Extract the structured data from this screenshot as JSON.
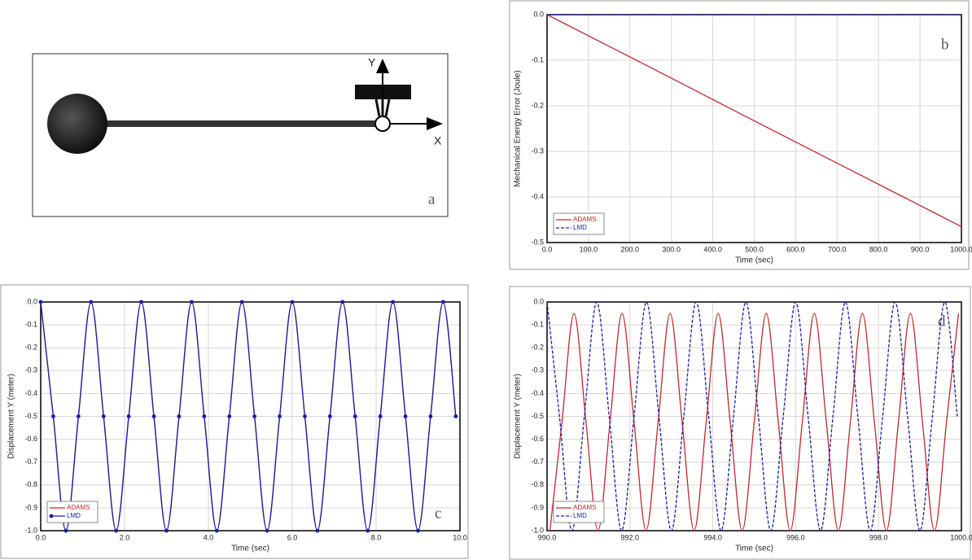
{
  "diagram": {
    "axis_y": "Y",
    "axis_x": "X",
    "panel_label": "a"
  },
  "chart_data": [
    {
      "type": "line",
      "panel_label": "b",
      "xlabel": "Time (sec)",
      "ylabel": "Mechanical Energy Error (Joule)",
      "x": [
        0,
        250,
        500,
        750,
        1000
      ],
      "series": [
        {
          "name": "ADAMS",
          "color": "#c0282d",
          "line_style": "solid",
          "values": [
            0,
            -0.116,
            -0.233,
            -0.349,
            -0.465
          ]
        },
        {
          "name": "LMD",
          "color": "#1c1ca8",
          "line_style": "dashed",
          "values": [
            0,
            0,
            0,
            0,
            0
          ]
        }
      ],
      "xlim": [
        0,
        1000
      ],
      "xticks": [
        {
          "value": 0,
          "label": "0.0"
        },
        {
          "value": 100,
          "label": "100.0"
        },
        {
          "value": 200,
          "label": "200.0"
        },
        {
          "value": 300,
          "label": "300.0"
        },
        {
          "value": 400,
          "label": "400.0"
        },
        {
          "value": 500,
          "label": "500.0"
        },
        {
          "value": 600,
          "label": "600.0"
        },
        {
          "value": 700,
          "label": "700.0"
        },
        {
          "value": 800,
          "label": "800.0"
        },
        {
          "value": 900,
          "label": "900.0"
        },
        {
          "value": 1000,
          "label": "1000.0"
        }
      ],
      "ylim": [
        -0.5,
        0
      ],
      "yticks": [
        {
          "value": 0,
          "label": "0.0"
        },
        {
          "value": -0.1,
          "label": "-0.1"
        },
        {
          "value": -0.2,
          "label": "-0.2"
        },
        {
          "value": -0.3,
          "label": "-0.3"
        },
        {
          "value": -0.4,
          "label": "-0.4"
        },
        {
          "value": -0.5,
          "label": "-0.5"
        }
      ],
      "grid": true,
      "legend": "lower-left"
    },
    {
      "type": "line",
      "panel_label": "c",
      "xlabel": "Time (sec)",
      "ylabel": "Displacement Y (meter)",
      "x": [
        0,
        0.3,
        0.6,
        0.9,
        1.2,
        1.5,
        1.8,
        2.1,
        2.4,
        2.7,
        3,
        3.3,
        3.6,
        3.9,
        4.2,
        4.5,
        4.8,
        5.1,
        5.4,
        5.7,
        6,
        6.3,
        6.6,
        6.9,
        7.2,
        7.5,
        7.8,
        8.1,
        8.4,
        8.7,
        9,
        9.3,
        9.6,
        9.9
      ],
      "series": [
        {
          "name": "ADAMS",
          "color": "#c0282d",
          "line_style": "solid",
          "values": [
            0,
            -0.5,
            -1,
            -0.5,
            0,
            -0.5,
            -1,
            -0.5,
            0,
            -0.5,
            -1,
            -0.5,
            0,
            -0.5,
            -1,
            -0.5,
            0,
            -0.5,
            -1,
            -0.5,
            0,
            -0.5,
            -1,
            -0.5,
            0,
            -0.5,
            -1,
            -0.5,
            0,
            -0.5,
            -1,
            -0.5,
            0,
            -0.5
          ]
        },
        {
          "name": "LMD",
          "color": "#1c1ca8",
          "line_style": "solid",
          "marker": "circle",
          "values": [
            0,
            -0.5,
            -1,
            -0.5,
            0,
            -0.5,
            -1,
            -0.5,
            0,
            -0.5,
            -1,
            -0.5,
            0,
            -0.5,
            -1,
            -0.5,
            0,
            -0.5,
            -1,
            -0.5,
            0,
            -0.5,
            -1,
            -0.5,
            0,
            -0.5,
            -1,
            -0.5,
            0,
            -0.5,
            -1,
            -0.5,
            0,
            -0.5
          ]
        }
      ],
      "xlim": [
        0,
        10
      ],
      "xticks": [
        {
          "value": 0,
          "label": "0.0"
        },
        {
          "value": 2,
          "label": "2.0"
        },
        {
          "value": 4,
          "label": "4.0"
        },
        {
          "value": 6,
          "label": "6.0"
        },
        {
          "value": 8,
          "label": "8.0"
        },
        {
          "value": 10,
          "label": "10.0"
        }
      ],
      "ylim": [
        -1,
        0
      ],
      "yticks": [
        {
          "value": 0,
          "label": "0.0"
        },
        {
          "value": -0.1,
          "label": "-0.1"
        },
        {
          "value": -0.2,
          "label": "-0.2"
        },
        {
          "value": -0.3,
          "label": "-0.3"
        },
        {
          "value": -0.4,
          "label": "-0.4"
        },
        {
          "value": -0.5,
          "label": "-0.5"
        },
        {
          "value": -0.6,
          "label": "-0.6"
        },
        {
          "value": -0.7,
          "label": "-0.7"
        },
        {
          "value": -0.8,
          "label": "-0.8"
        },
        {
          "value": -0.9,
          "label": "-0.9"
        },
        {
          "value": -1,
          "label": "-1.0"
        }
      ],
      "grid": true,
      "legend": "lower-left"
    },
    {
      "type": "line",
      "panel_label": "d",
      "xlabel": "Time (sec)",
      "ylabel": "Displacement Y (meter)",
      "series": [
        {
          "name": "ADAMS",
          "color": "#c0282d",
          "line_style": "solid",
          "x": [
            990.07,
            990.36,
            990.65,
            990.94,
            991.23,
            991.52,
            991.81,
            992.1,
            992.39,
            992.68,
            992.97,
            993.26,
            993.55,
            993.84,
            994.13,
            994.42,
            994.71,
            995,
            995.29,
            995.58,
            995.87,
            996.16,
            996.45,
            996.74,
            997.03,
            997.32,
            997.61,
            997.9,
            998.19,
            998.48,
            998.77,
            999.06,
            999.35,
            999.64,
            999.93
          ],
          "values": [
            -1,
            -0.525,
            -0.05,
            -0.525,
            -1,
            -0.525,
            -0.05,
            -0.525,
            -1,
            -0.525,
            -0.05,
            -0.525,
            -1,
            -0.525,
            -0.05,
            -0.525,
            -1,
            -0.525,
            -0.05,
            -0.525,
            -1,
            -0.525,
            -0.05,
            -0.525,
            -1,
            -0.525,
            -0.05,
            -0.525,
            -1,
            -0.525,
            -0.05,
            -0.525,
            -1,
            -0.525,
            -0.05
          ]
        },
        {
          "name": "LMD",
          "color": "#1c1ca8",
          "line_style": "dashed",
          "x": [
            990,
            990.3,
            990.6,
            990.9,
            991.2,
            991.5,
            991.8,
            992.1,
            992.4,
            992.7,
            993,
            993.3,
            993.6,
            993.9,
            994.2,
            994.5,
            994.8,
            995.1,
            995.4,
            995.7,
            996,
            996.3,
            996.6,
            996.9,
            997.2,
            997.5,
            997.8,
            998.1,
            998.4,
            998.7,
            999,
            999.3,
            999.6,
            999.9
          ],
          "values": [
            0,
            -0.5,
            -1,
            -0.5,
            0,
            -0.5,
            -1,
            -0.5,
            0,
            -0.5,
            -1,
            -0.5,
            0,
            -0.5,
            -1,
            -0.5,
            0,
            -0.5,
            -1,
            -0.5,
            0,
            -0.5,
            -1,
            -0.5,
            0,
            -0.5,
            -1,
            -0.5,
            0,
            -0.5,
            -1,
            -0.5,
            0,
            -0.5
          ]
        }
      ],
      "xlim": [
        990,
        1000
      ],
      "xticks": [
        {
          "value": 990,
          "label": "990.0"
        },
        {
          "value": 992,
          "label": "992.0"
        },
        {
          "value": 994,
          "label": "994.0"
        },
        {
          "value": 996,
          "label": "996.0"
        },
        {
          "value": 998,
          "label": "998.0"
        },
        {
          "value": 1000,
          "label": "1000.0"
        }
      ],
      "ylim": [
        -1,
        0
      ],
      "yticks": [
        {
          "value": 0,
          "label": "0.0"
        },
        {
          "value": -0.1,
          "label": "-0.1"
        },
        {
          "value": -0.2,
          "label": "-0.2"
        },
        {
          "value": -0.3,
          "label": "-0.3"
        },
        {
          "value": -0.4,
          "label": "-0.4"
        },
        {
          "value": -0.5,
          "label": "-0.5"
        },
        {
          "value": -0.6,
          "label": "-0.6"
        },
        {
          "value": -0.7,
          "label": "-0.7"
        },
        {
          "value": -0.8,
          "label": "-0.8"
        },
        {
          "value": -0.9,
          "label": "-0.9"
        },
        {
          "value": -1,
          "label": "-1.0"
        }
      ],
      "grid": true,
      "legend": "lower-left"
    }
  ]
}
